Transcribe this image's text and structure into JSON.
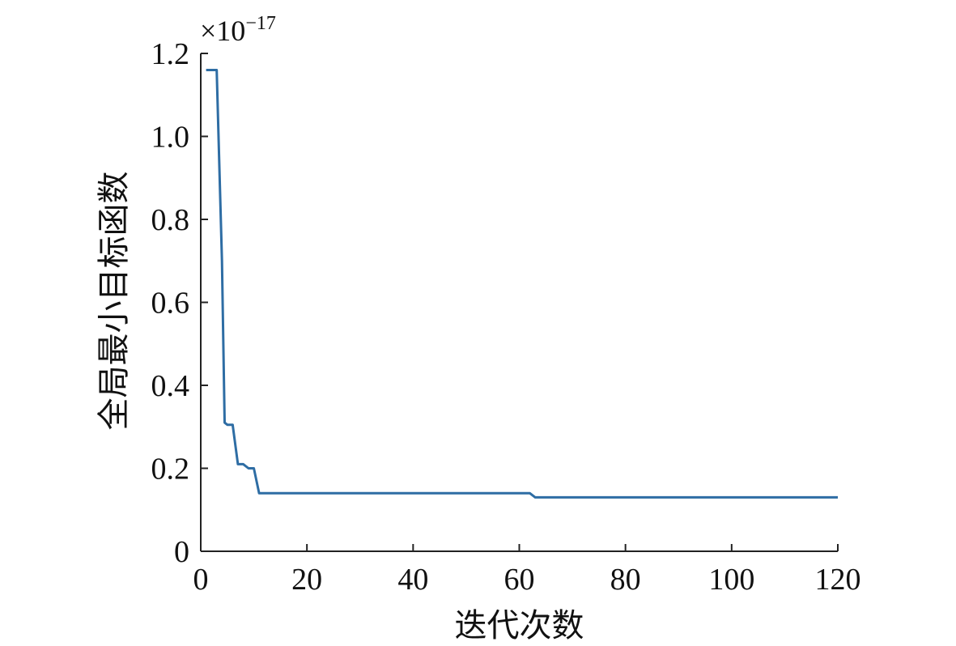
{
  "chart_data": {
    "type": "line",
    "title": "",
    "xlabel": "迭代次数",
    "ylabel": "全局最小目标函数",
    "y_scale_note": {
      "base": "×10",
      "exponent": "−17"
    },
    "xlim": [
      0,
      120
    ],
    "ylim": [
      0,
      1.2
    ],
    "x_ticks": [
      0,
      20,
      40,
      60,
      80,
      100,
      120
    ],
    "x_tick_labels": [
      "0",
      "20",
      "40",
      "60",
      "80",
      "100",
      "120"
    ],
    "y_ticks": [
      0,
      0.2,
      0.4,
      0.6,
      0.8,
      1.0,
      1.2
    ],
    "y_tick_labels": [
      "0",
      "0.2",
      "0.4",
      "0.6",
      "0.8",
      "1.0",
      "1.2"
    ],
    "grid": false,
    "legend": "none",
    "series": [
      {
        "color": "#2e6da4",
        "x": [
          1,
          2,
          3,
          4,
          4.5,
          5,
          6,
          7,
          8,
          9,
          10,
          11,
          20,
          40,
          62,
          63,
          80,
          100,
          120
        ],
        "y": [
          1.16,
          1.16,
          1.16,
          0.7,
          0.31,
          0.305,
          0.305,
          0.21,
          0.21,
          0.2,
          0.2,
          0.14,
          0.14,
          0.14,
          0.14,
          0.13,
          0.13,
          0.13,
          0.13
        ]
      }
    ]
  }
}
